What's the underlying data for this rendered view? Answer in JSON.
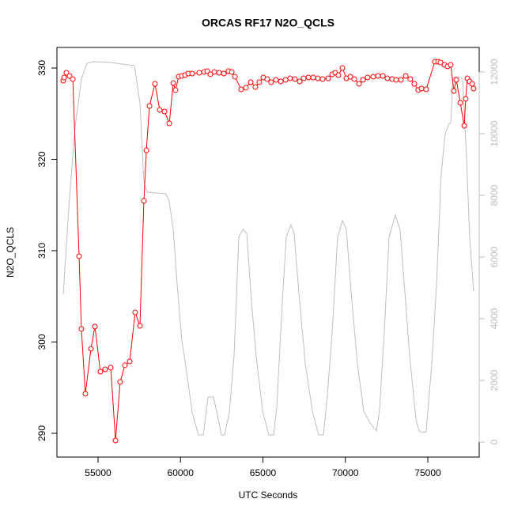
{
  "chart_data": {
    "type": "line",
    "title": "ORCAS RF17 N2O_QCLS",
    "xlabel": "UTC Seconds",
    "ylabel": "N2O_QCLS",
    "xlim": [
      52506,
      78118
    ],
    "xticks": [
      55000,
      60000,
      65000,
      70000,
      75000
    ],
    "ylim": [
      287.4,
      332.25
    ],
    "yticks": [
      290,
      300,
      310,
      320,
      330
    ],
    "y2lim": [
      -487,
      12795
    ],
    "y2ticks": [
      0,
      2000,
      4000,
      6000,
      8000,
      10000,
      12000
    ],
    "series": [
      {
        "name": "N2O_QCLS",
        "color": "#ff0000",
        "marker": "circle",
        "x": [
          52890,
          52940,
          53080,
          53270,
          53470,
          53850,
          53990,
          54230,
          54570,
          54810,
          55140,
          55430,
          55770,
          56060,
          56340,
          56630,
          56920,
          57250,
          57540,
          57780,
          57930,
          58120,
          58450,
          58740,
          59030,
          59320,
          59560,
          59700,
          59890,
          60080,
          60280,
          60470,
          60710,
          61140,
          61430,
          61620,
          61810,
          62050,
          62340,
          62630,
          62910,
          63110,
          63300,
          63680,
          63970,
          64260,
          64540,
          64780,
          65020,
          65260,
          65500,
          65790,
          66080,
          66370,
          66650,
          66940,
          67230,
          67470,
          67760,
          68050,
          68330,
          68620,
          68960,
          69200,
          69390,
          69580,
          69820,
          70060,
          70300,
          70540,
          70830,
          71070,
          71350,
          71690,
          71980,
          72270,
          72550,
          72840,
          73080,
          73370,
          73660,
          73940,
          74180,
          74420,
          74620,
          74900,
          75430,
          75620,
          75770,
          76010,
          76200,
          76390,
          76580,
          76730,
          76970,
          77210,
          77300,
          77400,
          77540,
          77690,
          77780
        ],
        "values": [
          328.61,
          328.96,
          329.48,
          329.13,
          328.79,
          309.39,
          301.43,
          294.33,
          299.26,
          301.69,
          296.75,
          297.01,
          297.19,
          289.22,
          295.63,
          297.45,
          297.88,
          303.25,
          301.77,
          315.45,
          320.99,
          325.84,
          328.27,
          325.41,
          325.24,
          323.94,
          328.35,
          327.58,
          329.05,
          329.13,
          329.22,
          329.39,
          329.39,
          329.48,
          329.57,
          329.65,
          329.31,
          329.57,
          329.48,
          329.39,
          329.65,
          329.57,
          329.05,
          327.66,
          327.84,
          328.44,
          327.92,
          328.44,
          328.96,
          328.79,
          328.44,
          328.7,
          328.53,
          328.7,
          328.87,
          328.79,
          328.53,
          328.87,
          328.96,
          328.96,
          328.87,
          328.79,
          328.87,
          329.31,
          329.48,
          329.22,
          330,
          328.87,
          329.05,
          328.79,
          328.27,
          328.7,
          328.96,
          329.05,
          329.13,
          329.13,
          328.87,
          328.79,
          328.7,
          328.7,
          329.13,
          328.79,
          328.27,
          327.58,
          327.75,
          327.66,
          330.69,
          330.69,
          330.61,
          330.35,
          330.17,
          330.35,
          327.49,
          328.7,
          326.19,
          323.68,
          326.62,
          328.87,
          328.53,
          328.27,
          327.75
        ]
      },
      {
        "axis": "y2",
        "color": "#bebebe",
        "x": [
          52890,
          53270,
          53610,
          53990,
          54330,
          54710,
          55770,
          57210,
          57540,
          57780,
          57970,
          59120,
          59320,
          59560,
          59800,
          60080,
          60370,
          60710,
          61090,
          61380,
          61670,
          62000,
          62240,
          62480,
          62670,
          62960,
          63250,
          63540,
          63780,
          64020,
          64300,
          64590,
          64980,
          65360,
          65650,
          65840,
          66130,
          66410,
          66700,
          66890,
          67180,
          67570,
          68000,
          68380,
          68670,
          68910,
          69200,
          69530,
          69820,
          70060,
          70350,
          70730,
          71110,
          71500,
          71880,
          72070,
          72360,
          72650,
          73030,
          73320,
          73610,
          73900,
          74280,
          74470,
          74660,
          74900,
          75240,
          75530,
          75810,
          76050,
          76250,
          76390,
          76530,
          76870,
          77110,
          77350,
          77540,
          77780
        ],
        "values": [
          4795,
          7923,
          10230,
          11769,
          12282,
          12333,
          12307,
          12205,
          11000,
          8436,
          8102,
          8051,
          7795,
          6897,
          5102,
          3308,
          2282,
          949,
          231,
          231,
          1461,
          1461,
          872,
          231,
          231,
          949,
          2795,
          6641,
          6897,
          6769,
          4590,
          2795,
          1000,
          231,
          231,
          1128,
          4077,
          6641,
          7051,
          6769,
          4846,
          2538,
          1000,
          231,
          231,
          1513,
          3564,
          6641,
          7179,
          6897,
          4846,
          2538,
          1000,
          615,
          359,
          1000,
          3564,
          6641,
          7359,
          6897,
          4846,
          2795,
          744,
          359,
          308,
          333,
          2538,
          5102,
          8692,
          9974,
          10282,
          10359,
          11820,
          11846,
          11769,
          9205,
          6641,
          4897
        ]
      }
    ]
  }
}
